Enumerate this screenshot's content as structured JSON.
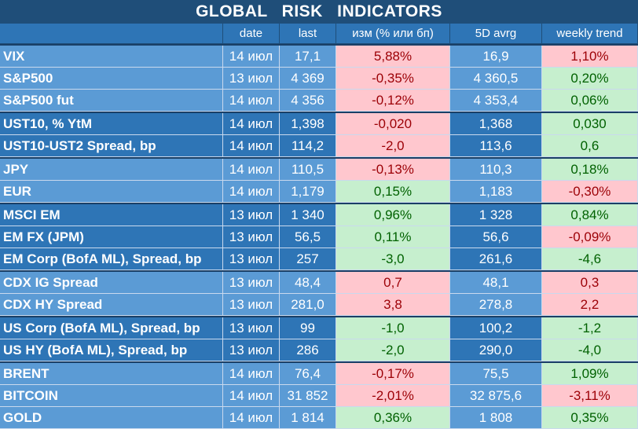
{
  "title": "GLOBAL   RISK   INDICATORS",
  "headers": [
    "",
    "date",
    "last",
    "изм (% или бп)",
    "5D avrg",
    "weekly trend"
  ],
  "groups": [
    {
      "shade": "light",
      "rows": [
        {
          "name": "VIX",
          "date": "14 июл",
          "last": "17,1",
          "change": "5,88%",
          "change_sign": "neg",
          "avg5d": "16,9",
          "trend": "1,10%",
          "trend_sign": "neg"
        },
        {
          "name": "S&P500",
          "date": "13 июл",
          "last": "4 369",
          "change": "-0,35%",
          "change_sign": "neg",
          "avg5d": "4 360,5",
          "trend": "0,20%",
          "trend_sign": "pos"
        },
        {
          "name": "S&P500 fut",
          "date": "14 июл",
          "last": "4 356",
          "change": "-0,12%",
          "change_sign": "neg",
          "avg5d": "4 353,4",
          "trend": "0,06%",
          "trend_sign": "pos"
        }
      ]
    },
    {
      "shade": "dark",
      "rows": [
        {
          "name": "UST10, % YtM",
          "date": "14 июл",
          "last": "1,398",
          "change": "-0,020",
          "change_sign": "neg",
          "avg5d": "1,368",
          "trend": "0,030",
          "trend_sign": "pos"
        },
        {
          "name": "UST10-UST2 Spread, bp",
          "date": "14 июл",
          "last": "114,2",
          "change": "-2,0",
          "change_sign": "neg",
          "avg5d": "113,6",
          "trend": "0,6",
          "trend_sign": "pos"
        }
      ]
    },
    {
      "shade": "light",
      "rows": [
        {
          "name": "JPY",
          "date": "14 июл",
          "last": "110,5",
          "change": "-0,13%",
          "change_sign": "neg",
          "avg5d": "110,3",
          "trend": "0,18%",
          "trend_sign": "pos"
        },
        {
          "name": "EUR",
          "date": "14 июл",
          "last": "1,179",
          "change": "0,15%",
          "change_sign": "pos",
          "avg5d": "1,183",
          "trend": "-0,30%",
          "trend_sign": "neg"
        }
      ]
    },
    {
      "shade": "dark",
      "rows": [
        {
          "name": "MSCI EM",
          "date": "13 июл",
          "last": "1 340",
          "change": "0,96%",
          "change_sign": "pos",
          "avg5d": "1 328",
          "trend": "0,84%",
          "trend_sign": "pos"
        },
        {
          "name": "EM FX (JPM)",
          "date": "13 июл",
          "last": "56,5",
          "change": "0,11%",
          "change_sign": "pos",
          "avg5d": "56,6",
          "trend": "-0,09%",
          "trend_sign": "neg"
        },
        {
          "name": "EM Corp (BofA ML), Spread, bp",
          "date": "13 июл",
          "last": "257",
          "change": "-3,0",
          "change_sign": "pos",
          "avg5d": "261,6",
          "trend": "-4,6",
          "trend_sign": "pos"
        }
      ]
    },
    {
      "shade": "light",
      "rows": [
        {
          "name": "CDX IG Spread",
          "date": "13 июл",
          "last": "48,4",
          "change": "0,7",
          "change_sign": "neg",
          "avg5d": "48,1",
          "trend": "0,3",
          "trend_sign": "neg"
        },
        {
          "name": "CDX HY Spread",
          "date": "13 июл",
          "last": "281,0",
          "change": "3,8",
          "change_sign": "neg",
          "avg5d": "278,8",
          "trend": "2,2",
          "trend_sign": "neg"
        }
      ]
    },
    {
      "shade": "dark",
      "rows": [
        {
          "name": "US Corp (BofA ML), Spread, bp",
          "date": "13 июл",
          "last": "99",
          "change": "-1,0",
          "change_sign": "pos",
          "avg5d": "100,2",
          "trend": "-1,2",
          "trend_sign": "pos"
        },
        {
          "name": "US HY (BofA ML), Spread, bp",
          "date": "13 июл",
          "last": "286",
          "change": "-2,0",
          "change_sign": "pos",
          "avg5d": "290,0",
          "trend": "-4,0",
          "trend_sign": "pos"
        }
      ]
    },
    {
      "shade": "light",
      "rows": [
        {
          "name": "BRENT",
          "date": "14 июл",
          "last": "76,4",
          "change": "-0,17%",
          "change_sign": "neg",
          "avg5d": "75,5",
          "trend": "1,09%",
          "trend_sign": "pos"
        },
        {
          "name": "BITCOIN",
          "date": "14 июл",
          "last": "31 852",
          "change": "-2,01%",
          "change_sign": "neg",
          "avg5d": "32 875,6",
          "trend": "-3,11%",
          "trend_sign": "neg"
        },
        {
          "name": "GOLD",
          "date": "14 июл",
          "last": "1 814",
          "change": "0,36%",
          "change_sign": "pos",
          "avg5d": "1 808",
          "trend": "0,35%",
          "trend_sign": "pos"
        }
      ]
    }
  ],
  "colors": {
    "title_bg": "#1f4e79",
    "header_bg": "#2e75b6",
    "group_light_bg": "#5b9bd5",
    "group_dark_bg": "#2e75b6",
    "positive_bg": "#c6efce",
    "positive_text": "#006100",
    "negative_bg": "#ffc7ce",
    "negative_text": "#9c0006"
  }
}
